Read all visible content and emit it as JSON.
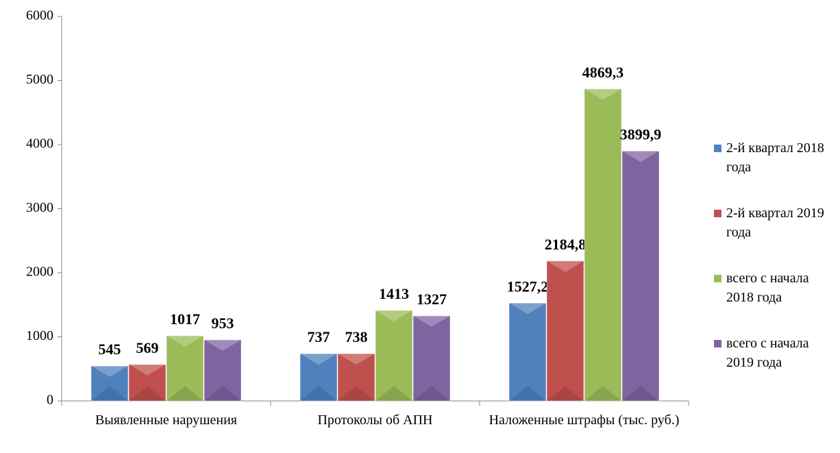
{
  "chart_data": {
    "type": "bar",
    "categories": [
      "Выявленные нарушения",
      "Протоколы об АПН",
      "Наложенные штрафы (тыс. руб.)"
    ],
    "series": [
      {
        "name": "2-й квартал 2018 года",
        "color": "#4f81bd",
        "values": [
          545,
          737,
          1527.2
        ],
        "value_labels": [
          "545",
          "737",
          "1527,2"
        ]
      },
      {
        "name": "2-й квартал 2019 года",
        "color": "#c0504d",
        "values": [
          569,
          738,
          2184.8
        ],
        "value_labels": [
          "569",
          "738",
          "2184,8"
        ]
      },
      {
        "name": "всего с начала 2018 года",
        "color": "#9bbb59",
        "values": [
          1017,
          1413,
          4869.3
        ],
        "value_labels": [
          "1017",
          "1413",
          "4869,3"
        ]
      },
      {
        "name": "всего с начала 2019 года",
        "color": "#8064a2",
        "values": [
          953,
          1327,
          3899.9
        ],
        "value_labels": [
          "953",
          "1327",
          "3899,9"
        ]
      }
    ],
    "ylim": [
      0,
      6000
    ],
    "yticks": [
      0,
      1000,
      2000,
      3000,
      4000,
      5000,
      6000
    ],
    "grid": false,
    "legend": "right"
  }
}
